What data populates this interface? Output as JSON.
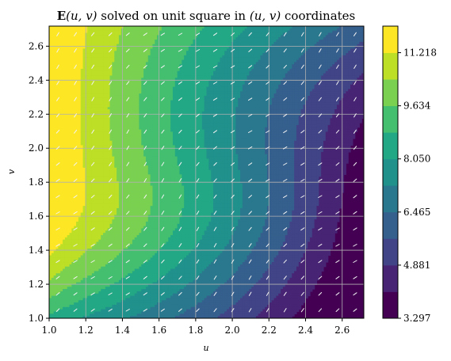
{
  "chart_data": {
    "type": "contour",
    "title": "E(u, v) solved on unit square in (u, v) coordinates",
    "title_parts": {
      "bold_symbol": "E",
      "args": "(u, v)",
      "middle": " solved on unit square in ",
      "coords": "(u, v)",
      "tail": " coordinates"
    },
    "xlabel": "u",
    "ylabel": "v",
    "xlim": [
      1.0,
      2.718
    ],
    "ylim": [
      1.0,
      2.718
    ],
    "x_ticks": [
      "1.0",
      "1.2",
      "1.4",
      "1.6",
      "1.8",
      "2.0",
      "2.2",
      "2.4",
      "2.6"
    ],
    "y_ticks": [
      "1.0",
      "1.2",
      "1.4",
      "1.6",
      "1.8",
      "2.0",
      "2.2",
      "2.4",
      "2.6"
    ],
    "grid": true,
    "quiver": true,
    "colormap": "viridis",
    "levels": [
      3.297,
      4.089,
      4.881,
      5.673,
      6.465,
      7.257,
      8.05,
      8.842,
      9.634,
      10.426,
      11.218,
      12.01
    ],
    "colorbar_ticks": [
      "3.297",
      "4.881",
      "6.465",
      "8.050",
      "9.634",
      "11.218"
    ],
    "level_colors": [
      "#440154",
      "#482475",
      "#414487",
      "#355f8d",
      "#2a788e",
      "#21918c",
      "#22a884",
      "#44bf70",
      "#7ad151",
      "#bddf26",
      "#fde725"
    ]
  }
}
